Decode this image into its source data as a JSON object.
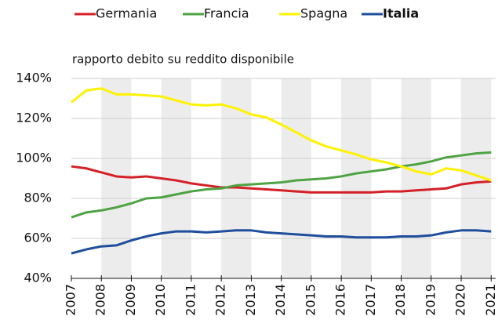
{
  "chart_data": {
    "type": "line",
    "subtitle": "rapporto debito su reddito disponibile",
    "x": [
      2007,
      2007.5,
      2008,
      2008.5,
      2009,
      2009.5,
      2010,
      2010.5,
      2011,
      2011.5,
      2012,
      2012.5,
      2013,
      2013.5,
      2014,
      2014.5,
      2015,
      2015.5,
      2016,
      2016.5,
      2017,
      2017.5,
      2018,
      2018.5,
      2019,
      2019.5,
      2020,
      2020.5,
      2021
    ],
    "series": [
      {
        "name": "Germania",
        "color": "#d42027",
        "values": [
          96,
          95,
          93,
          91,
          90.5,
          91,
          90,
          89,
          87.5,
          86.5,
          85.5,
          85.5,
          85,
          84.5,
          84,
          83.5,
          83,
          83,
          83,
          83,
          83,
          83.5,
          83.5,
          84,
          84.5,
          85,
          87,
          88,
          88.5
        ]
      },
      {
        "name": "Francia",
        "color": "#4ea343",
        "values": [
          70.5,
          73,
          74,
          75.5,
          77.5,
          80,
          80.5,
          82,
          83.5,
          84.5,
          85,
          86.5,
          87,
          87.5,
          88,
          89,
          89.5,
          90,
          91,
          92.5,
          93.5,
          94.5,
          96,
          97,
          98.5,
          100.5,
          101.5,
          102.5,
          103
        ]
      },
      {
        "name": "Spagna",
        "color": "#fff200",
        "values": [
          128,
          134,
          135,
          132,
          132,
          131.5,
          131,
          129,
          127,
          126.5,
          127,
          125,
          122,
          120.5,
          117,
          113,
          109,
          106,
          104,
          102,
          99.5,
          98,
          96,
          93.5,
          92,
          95,
          94,
          91.5,
          89
        ]
      },
      {
        "name": "Italia",
        "color": "#1f4e9c",
        "values": [
          52.5,
          54.5,
          56,
          56.5,
          59,
          61,
          62.5,
          63.5,
          63.5,
          63,
          63.5,
          64,
          64,
          63,
          62.5,
          62,
          61.5,
          61,
          61,
          60.5,
          60.5,
          60.5,
          61,
          61,
          61.5,
          63,
          64,
          64,
          63.5
        ]
      }
    ],
    "xlim": [
      2007,
      2021.15
    ],
    "xticks": [
      2007,
      2008,
      2009,
      2010,
      2011,
      2012,
      2013,
      2014,
      2015,
      2016,
      2017,
      2018,
      2019,
      2020,
      2021
    ],
    "ylim": [
      40,
      140
    ],
    "yticks": [
      {
        "value": 40,
        "label": "40%"
      },
      {
        "value": 60,
        "label": "60%"
      },
      {
        "value": 80,
        "label": "80%"
      },
      {
        "value": 100,
        "label": "100%"
      },
      {
        "value": 120,
        "label": "120%"
      },
      {
        "value": 140,
        "label": "140%"
      }
    ],
    "grid": true,
    "legend": "top"
  }
}
